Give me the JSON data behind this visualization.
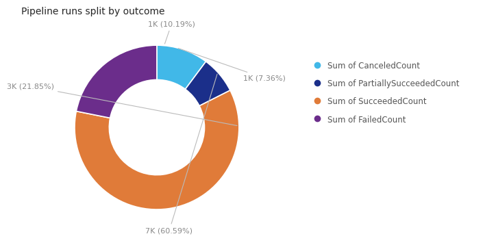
{
  "title": "Pipeline runs split by outcome",
  "slices": [
    {
      "label": "Sum of CanceledCount",
      "value": 10.19,
      "display": "1K (10.19%)",
      "color": "#41B8E8"
    },
    {
      "label": "Sum of PartiallySucceededCount",
      "value": 7.36,
      "display": "1K (7.36%)",
      "color": "#1B2F8A"
    },
    {
      "label": "Sum of SucceededCount",
      "value": 60.59,
      "display": "7K (60.59%)",
      "color": "#E07B39"
    },
    {
      "label": "Sum of FailedCount",
      "value": 21.85,
      "display": "3K (21.85%)",
      "color": "#6B2D8B"
    }
  ],
  "bg_color": "#FFFFFF",
  "title_color": "#252525",
  "title_fontsize": 10,
  "label_fontsize": 8,
  "legend_fontsize": 8.5,
  "donut_width": 0.42,
  "start_angle": 90,
  "label_color": "#888888"
}
